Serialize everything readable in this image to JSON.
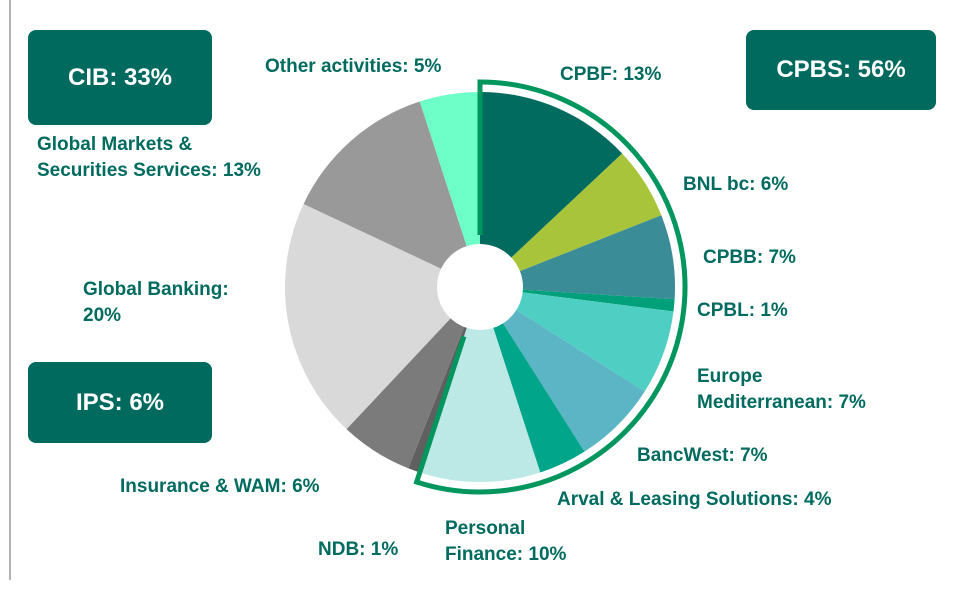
{
  "chart_data": {
    "type": "pie",
    "values": [
      13,
      6,
      7,
      1,
      7,
      7,
      4,
      10,
      1,
      6,
      20,
      13,
      5
    ],
    "value_labels": [
      "CPBF: 13%",
      "BNL bc: 6%",
      "CPBB: 7%",
      "CPBL: 1%",
      "Europe\nMediterranean: 7%",
      "BancWest: 7%",
      "Arval & Leasing Solutions: 4%",
      "Personal\nFinance: 10%",
      "NDB: 1%",
      "Insurance & WAM: 6%",
      "Global Banking:\n20%",
      "Global Markets &\nSecurities Services: 13%",
      "Other activities: 5%"
    ],
    "colors": [
      "#006b5e",
      "#a8c43a",
      "#3a8c96",
      "#00a07a",
      "#4fcfc4",
      "#5bb5c5",
      "#00a58a",
      "#bce9e6",
      "#606060",
      "#7b7b7b",
      "#d9d9d9",
      "#999999",
      "#6effc8"
    ],
    "annotations": [
      "CIB: 33%",
      "CPBS: 56%",
      "IPS: 6%"
    ]
  }
}
